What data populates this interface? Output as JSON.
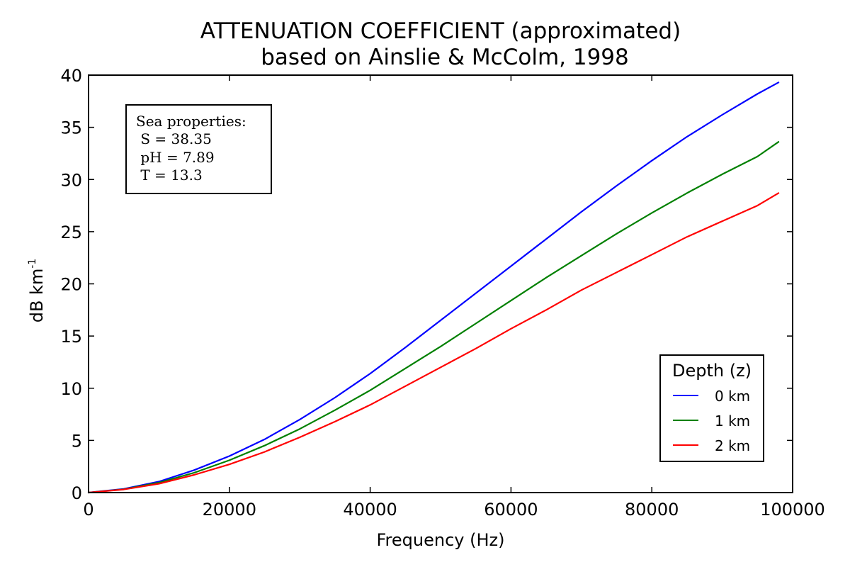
{
  "chart_data": {
    "type": "line",
    "title": "ATTENUATION COEFFICIENT (approximated)",
    "subtitle": "based on Ainslie & McColm, 1998",
    "xlabel": "Frequency (Hz)",
    "ylabel": "dB km",
    "ylabel_superscript": "-1",
    "xlim": [
      0,
      100000
    ],
    "ylim": [
      0,
      40
    ],
    "xticks": [
      0,
      20000,
      40000,
      60000,
      80000,
      100000
    ],
    "yticks": [
      0,
      5,
      10,
      15,
      20,
      25,
      30,
      35,
      40
    ],
    "grid": false,
    "legend": {
      "title": "Depth (z)",
      "placement": "lower-right"
    },
    "annotation": {
      "lines": [
        "Sea properties:",
        " S = 38.35",
        " pH = 7.89",
        " T = 13.3"
      ],
      "placement": "upper-left"
    },
    "x": [
      0,
      5000,
      10000,
      15000,
      20000,
      25000,
      30000,
      35000,
      40000,
      45000,
      50000,
      55000,
      60000,
      65000,
      70000,
      75000,
      80000,
      85000,
      90000,
      95000,
      98000
    ],
    "series": [
      {
        "name": "0 km",
        "color": "#0000ff",
        "values": [
          0,
          0.35,
          1.05,
          2.15,
          3.5,
          5.1,
          7.0,
          9.1,
          11.4,
          13.9,
          16.5,
          19.1,
          21.7,
          24.3,
          26.9,
          29.4,
          31.8,
          34.1,
          36.2,
          38.2,
          39.3
        ]
      },
      {
        "name": "1 km",
        "color": "#008000",
        "values": [
          0,
          0.32,
          0.95,
          1.9,
          3.1,
          4.5,
          6.1,
          7.9,
          9.8,
          11.9,
          14.0,
          16.2,
          18.4,
          20.6,
          22.7,
          24.8,
          26.8,
          28.7,
          30.5,
          32.2,
          33.6
        ]
      },
      {
        "name": "2 km",
        "color": "#ff0000",
        "values": [
          0,
          0.3,
          0.85,
          1.7,
          2.7,
          3.9,
          5.3,
          6.8,
          8.4,
          10.2,
          12.0,
          13.8,
          15.7,
          17.5,
          19.4,
          21.1,
          22.8,
          24.5,
          26.0,
          27.5,
          28.7
        ]
      }
    ]
  }
}
